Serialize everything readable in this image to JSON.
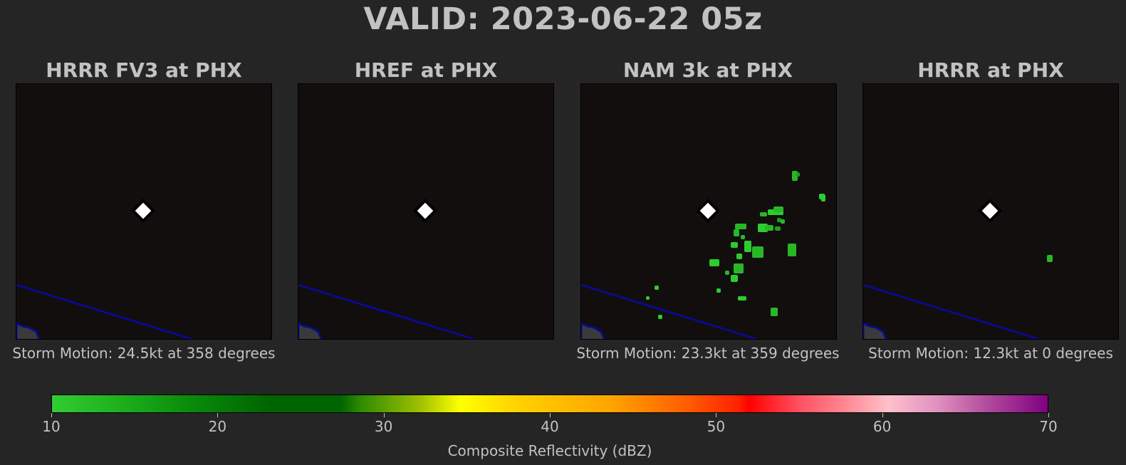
{
  "title": "VALID: 2023-06-22 05z",
  "chart_data": [
    {
      "type": "heatmap",
      "title": "HRRR FV3 at PHX",
      "caption": "Storm Motion: 24.5kt at 358 degrees",
      "marker": "PHX",
      "echoes_dbz": []
    },
    {
      "type": "heatmap",
      "title": "HREF at PHX",
      "caption": "",
      "marker": "PHX",
      "echoes_dbz": []
    },
    {
      "type": "heatmap",
      "title": "NAM 3k at PHX",
      "caption": "Storm Motion: 23.3kt at 359 degrees",
      "marker": "PHX",
      "echoes_dbz": [
        15,
        18,
        15,
        12,
        15,
        18,
        15,
        15,
        12,
        15,
        18,
        15,
        15,
        12,
        12,
        15,
        15,
        12,
        12,
        15,
        12,
        15,
        12,
        12,
        15,
        12,
        12,
        12,
        12,
        12
      ]
    },
    {
      "type": "heatmap",
      "title": "HRRR at PHX",
      "caption": "Storm Motion: 12.3kt at 0 degrees",
      "marker": "PHX",
      "echoes_dbz": [
        15
      ]
    }
  ],
  "colorbar": {
    "label": "Composite Reflectivity (dBZ)",
    "min": 10,
    "max": 70,
    "ticks": [
      10,
      20,
      30,
      40,
      50,
      60,
      70
    ],
    "colors": {
      "10": "#33cc33",
      "20": "#006400",
      "30": "#ffff00",
      "40": "#ffa500",
      "50": "#ff2000",
      "60": "#ffc0cb",
      "70": "#800080"
    }
  },
  "style": {
    "background": "#252525",
    "map_background": "#110e0d",
    "border_color": "#00008b",
    "echo_color": "#22bb22",
    "marker_color": "#ffffff"
  }
}
